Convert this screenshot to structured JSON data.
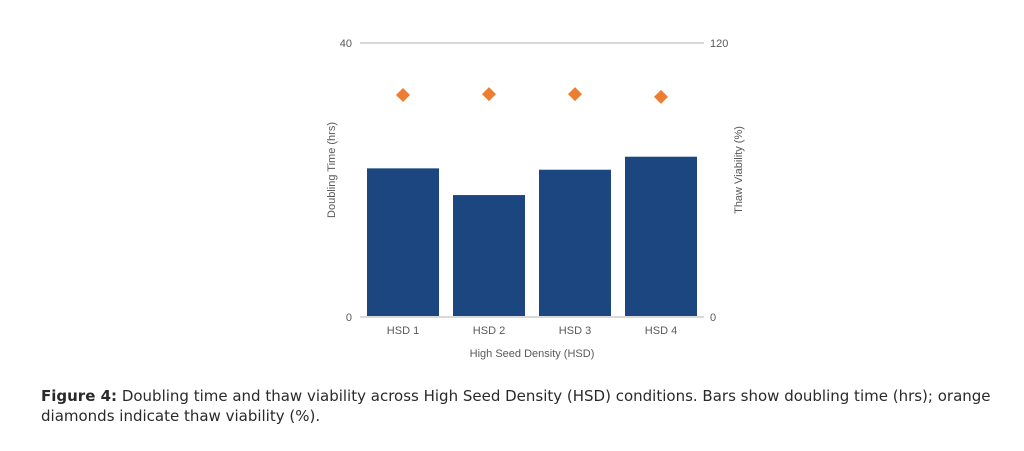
{
  "chart_data": {
    "type": "bar",
    "title": "",
    "categories": [
      "HSD 1",
      "HSD 2",
      "HSD 3",
      "HSD 4"
    ],
    "series": [
      {
        "name": "Doubling Time (hrs)",
        "type": "bar",
        "axis": "left",
        "color": "#1b4680",
        "values": [
          21.7,
          17.8,
          21.5,
          23.4
        ]
      },
      {
        "name": "Thaw Viability (%)",
        "type": "scatter",
        "marker": "diamond",
        "axis": "right",
        "color": "#ed7d31",
        "values": [
          97.2,
          97.6,
          97.6,
          96.4
        ]
      }
    ],
    "xlabel": "High Seed Density (HSD)",
    "ylabel": "Doubling Time (hrs)",
    "y2label": "Thaw Viability (%)",
    "ylim": [
      0,
      40
    ],
    "y2lim": [
      0,
      120
    ],
    "yticks": [
      "0",
      "40"
    ],
    "y2ticks": [
      "0",
      "120"
    ],
    "grid": true,
    "legend": "none"
  },
  "caption": {
    "label": "Figure 4:",
    "text": " Doubling time and thaw viability across High Seed Density (HSD) conditions. Bars show doubling time (hrs); orange diamonds indicate thaw viability (%)."
  }
}
